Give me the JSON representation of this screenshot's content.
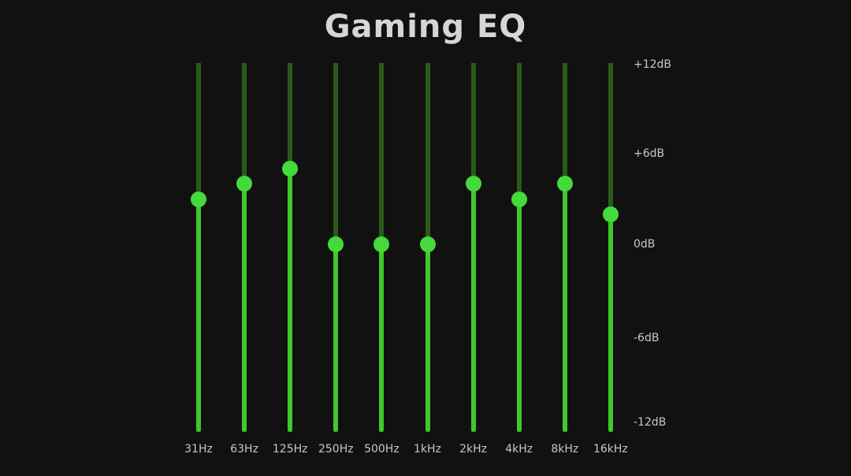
{
  "title": "Gaming EQ",
  "accent_color": "#46d93a",
  "track_color": "#2a5a1a",
  "db_scale": {
    "max_db": 12,
    "min_db": -12,
    "labels": [
      "+12dB",
      "+6dB",
      "0dB",
      "-6dB",
      "-12dB"
    ],
    "label_values": [
      12,
      6,
      0,
      -6,
      -12
    ]
  },
  "bands": [
    {
      "label": "31Hz",
      "gain_db": 3
    },
    {
      "label": "63Hz",
      "gain_db": 4
    },
    {
      "label": "125Hz",
      "gain_db": 5
    },
    {
      "label": "250Hz",
      "gain_db": 0
    },
    {
      "label": "500Hz",
      "gain_db": 0
    },
    {
      "label": "1kHz",
      "gain_db": 0
    },
    {
      "label": "2kHz",
      "gain_db": 4
    },
    {
      "label": "4kHz",
      "gain_db": 3
    },
    {
      "label": "8kHz",
      "gain_db": 4
    },
    {
      "label": "16kHz",
      "gain_db": 2
    }
  ]
}
